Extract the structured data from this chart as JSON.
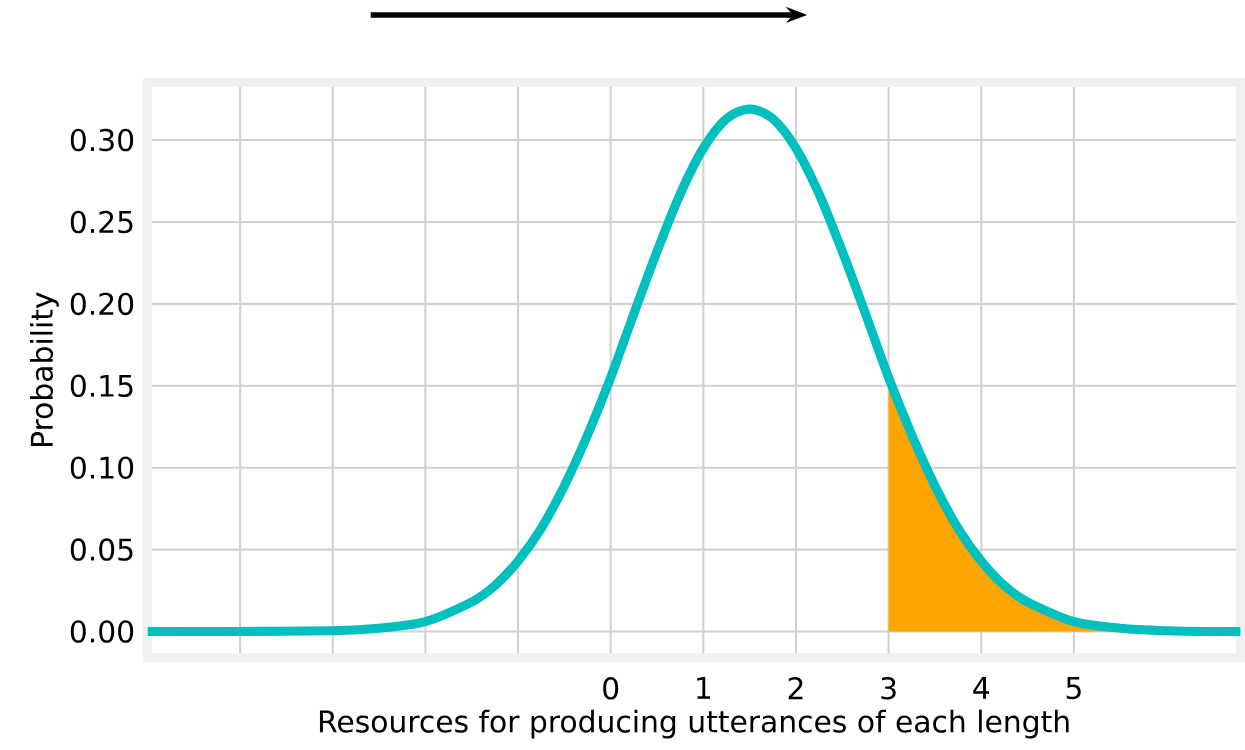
{
  "chart_data": {
    "type": "line",
    "xlabel": "Resources for producing utterances of each length",
    "ylabel": "Probability",
    "xlim": [
      -5,
      6.8
    ],
    "ylim": [
      -0.016,
      0.335
    ],
    "xticks": [
      {
        "value": -4,
        "label": null
      },
      {
        "value": -3,
        "label": null
      },
      {
        "value": -2,
        "label": null
      },
      {
        "value": -1,
        "label": null
      },
      0,
      1,
      2,
      3,
      4,
      5
    ],
    "yticks": [
      {
        "value": 0,
        "label": "0.00"
      },
      {
        "value": 0.05,
        "label": "0.05"
      },
      {
        "value": 0.1,
        "label": "0.10"
      },
      {
        "value": 0.15,
        "label": "0.15"
      },
      {
        "value": 0.2,
        "label": "0.20"
      },
      {
        "value": 0.25,
        "label": "0.25"
      },
      {
        "value": 0.3,
        "label": "0.30"
      }
    ],
    "grid": true,
    "series": [
      {
        "type": "area",
        "color": "#ffa500",
        "x": [
          3,
          3.25,
          3.5,
          3.75,
          4,
          4.25,
          4.5,
          5,
          5.5,
          6
        ],
        "values": [
          0.155,
          0.12,
          0.089,
          0.063,
          0.043,
          0.028,
          0.018,
          0.006,
          0.002,
          0.0005
        ]
      },
      {
        "color": "#00bfbf",
        "x": [
          -5,
          -4,
          -3,
          -2.5,
          -2,
          -1.5,
          -1.25,
          -1,
          -0.75,
          -0.5,
          -0.25,
          0,
          0.25,
          0.5,
          0.75,
          1,
          1.25,
          1.5,
          1.75,
          2,
          2.25,
          2.5,
          2.75,
          3,
          3.25,
          3.5,
          3.75,
          4,
          4.25,
          4.5,
          5,
          5.5,
          6,
          6.5,
          6.8
        ],
        "values": [
          0,
          0,
          0.0005,
          0.002,
          0.006,
          0.018,
          0.028,
          0.043,
          0.063,
          0.089,
          0.12,
          0.155,
          0.194,
          0.232,
          0.267,
          0.295,
          0.313,
          0.319,
          0.313,
          0.295,
          0.267,
          0.232,
          0.194,
          0.155,
          0.12,
          0.089,
          0.063,
          0.043,
          0.028,
          0.018,
          0.006,
          0.002,
          0.0005,
          0,
          0
        ]
      }
    ]
  }
}
